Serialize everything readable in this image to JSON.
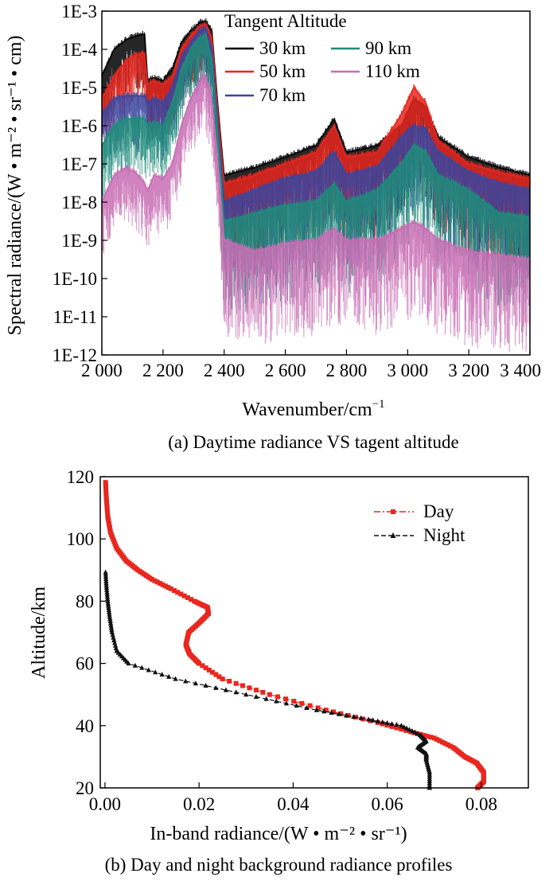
{
  "chart_data": [
    {
      "type": "line",
      "caption": "(a) Daytime radiance VS tagent altitude",
      "xlabel": "Wavenumber/cm",
      "xlabel_sup": "−1",
      "ylabel": "Spectral radiance/(W • m⁻² • sr⁻¹ • cm)",
      "x_ticks": [
        "2 000",
        "2 200",
        "2 400",
        "2 600",
        "2 800",
        "3 000",
        "3 200",
        "3 400"
      ],
      "y_ticks": [
        "1E-12",
        "1E-11",
        "1E-10",
        "1E-9",
        "1E-8",
        "1E-7",
        "1E-6",
        "1E-5",
        "1E-4",
        "1E-3"
      ],
      "xlim": [
        2000,
        3400
      ],
      "ylim": [
        1e-12,
        0.001
      ],
      "yscale": "log",
      "legend_title": "Tangent Altitude",
      "legend_position": "top",
      "series": [
        {
          "name": "30 km",
          "color": "#000000",
          "x": [
            2000,
            2040,
            2080,
            2110,
            2140,
            2150,
            2170,
            2200,
            2230,
            2260,
            2290,
            2320,
            2340,
            2360,
            2380,
            2400,
            2500,
            2600,
            2700,
            2760,
            2800,
            2900,
            2980,
            3020,
            3060,
            3100,
            3200,
            3300,
            3400
          ],
          "y": [
            2e-05,
            0.0001,
            0.00018,
            0.00022,
            0.00025,
            1.5e-05,
            1.8e-05,
            1.5e-05,
            3e-05,
            0.00015,
            0.0003,
            0.0005,
            0.00055,
            0.0003,
            3e-06,
            5e-08,
            8e-08,
            1.5e-07,
            3e-07,
            1.5e-06,
            2e-07,
            3e-07,
            1e-06,
            5e-06,
            3e-06,
            5e-07,
            1.5e-07,
            8e-08,
            5e-08
          ]
        },
        {
          "name": "50 km",
          "color": "#e8271f",
          "x": [
            2000,
            2040,
            2080,
            2110,
            2140,
            2150,
            2170,
            2200,
            2230,
            2260,
            2290,
            2320,
            2340,
            2360,
            2380,
            2400,
            2500,
            2600,
            2700,
            2760,
            2800,
            2900,
            2980,
            3020,
            3060,
            3100,
            3200,
            3300,
            3400
          ],
          "y": [
            5e-06,
            2e-05,
            5e-05,
            7e-05,
            8e-05,
            1.2e-05,
            1.5e-05,
            1.2e-05,
            2e-05,
            0.0001,
            0.00022,
            0.0004,
            0.00045,
            0.0002,
            2e-06,
            3e-08,
            5e-08,
            1e-07,
            2e-07,
            1e-06,
            1.5e-07,
            2e-07,
            2e-06,
            1e-05,
            4e-06,
            4e-07,
            1e-07,
            6e-08,
            4e-08
          ]
        },
        {
          "name": "70 km",
          "color": "#3a45a0",
          "x": [
            2000,
            2040,
            2080,
            2110,
            2140,
            2150,
            2170,
            2200,
            2230,
            2260,
            2290,
            2320,
            2340,
            2360,
            2380,
            2400,
            2500,
            2600,
            2700,
            2760,
            2800,
            2900,
            2980,
            3020,
            3060,
            3100,
            3200,
            3300,
            3400
          ],
          "y": [
            2e-06,
            5e-06,
            6e-06,
            6e-06,
            6e-06,
            4e-06,
            5e-06,
            4e-06,
            1e-05,
            6e-05,
            0.00015,
            0.0003,
            0.00035,
            0.0001,
            1e-06,
            1e-08,
            2e-08,
            4e-08,
            6e-08,
            2e-07,
            5e-08,
            8e-08,
            5e-07,
            1e-06,
            8e-07,
            2e-07,
            6e-08,
            3e-08,
            2e-08
          ]
        },
        {
          "name": "90 km",
          "color": "#1e8c7a",
          "x": [
            2000,
            2040,
            2080,
            2110,
            2140,
            2150,
            2170,
            2200,
            2230,
            2260,
            2290,
            2320,
            2340,
            2360,
            2380,
            2400,
            2500,
            2600,
            2700,
            2760,
            2800,
            2900,
            2980,
            3020,
            3060,
            3100,
            3200,
            3300,
            3400
          ],
          "y": [
            3e-07,
            1e-06,
            1.5e-06,
            1.5e-06,
            1.5e-06,
            1e-06,
            1.2e-06,
            1e-06,
            4e-06,
            3e-05,
            0.0001,
            0.0002,
            0.00025,
            5e-05,
            5e-07,
            3e-09,
            5e-09,
            8e-09,
            1e-08,
            3e-08,
            1e-08,
            2e-08,
            1e-07,
            3e-07,
            2e-07,
            5e-08,
            2e-08,
            5e-09,
            4e-09
          ]
        },
        {
          "name": "110 km",
          "color": "#c86db4",
          "x": [
            2000,
            2040,
            2080,
            2110,
            2140,
            2150,
            2170,
            2200,
            2230,
            2260,
            2290,
            2320,
            2340,
            2360,
            2380,
            2400,
            2500,
            2600,
            2700,
            2760,
            2800,
            2900,
            2980,
            3020,
            3060,
            3100,
            3200,
            3300,
            3400
          ],
          "y": [
            1e-08,
            5e-08,
            8e-08,
            6e-08,
            3e-08,
            2e-08,
            5e-08,
            4e-08,
            1e-07,
            1e-06,
            5e-06,
            1.5e-05,
            2e-05,
            5e-06,
            1e-07,
            1e-09,
            5e-10,
            8e-10,
            1e-09,
            2e-09,
            1e-09,
            1e-09,
            2e-09,
            3e-09,
            2e-09,
            1e-09,
            5e-10,
            4e-10,
            3e-10
          ]
        }
      ]
    },
    {
      "type": "line",
      "caption": "(b) Day and night background radiance profiles",
      "xlabel": "In-band radiance/(W • m⁻² • sr⁻¹)",
      "ylabel": "Altitude/km",
      "x_ticks": [
        "0.00",
        "0.02",
        "0.04",
        "0.06",
        "0.08"
      ],
      "y_ticks": [
        "20",
        "40",
        "60",
        "80",
        "100",
        "120"
      ],
      "xlim": [
        -0.001,
        0.09
      ],
      "ylim": [
        20,
        120
      ],
      "legend_position": "top-right",
      "series": [
        {
          "name": "Day",
          "color": "#e8271f",
          "marker": "square",
          "linestyle": "dash-dot",
          "x": [
            0.0792,
            0.0805,
            0.0805,
            0.079,
            0.0765,
            0.074,
            0.07,
            0.065,
            0.058,
            0.047,
            0.035,
            0.025,
            0.02,
            0.018,
            0.0172,
            0.0178,
            0.02,
            0.022,
            0.0218,
            0.019,
            0.014,
            0.01,
            0.007,
            0.0045,
            0.0025,
            0.0012,
            0.0006,
            0.0003,
            0.0001
          ],
          "y": [
            20,
            22,
            25,
            28,
            30,
            33,
            36,
            38,
            41,
            45,
            50,
            55,
            60,
            63,
            66,
            70,
            73,
            76,
            78,
            80,
            84,
            87,
            90,
            93,
            97,
            102,
            107,
            113,
            119
          ]
        },
        {
          "name": "Night",
          "color": "#111111",
          "marker": "triangle",
          "linestyle": "dash",
          "x": [
            0.069,
            0.069,
            0.0683,
            0.0683,
            0.0665,
            0.0683,
            0.067,
            0.063,
            0.056,
            0.045,
            0.03,
            0.015,
            0.005,
            0.0025,
            0.0015,
            0.001,
            0.0006,
            0.0003,
            0.0001
          ],
          "y": [
            20,
            25,
            29,
            31,
            33,
            35,
            37,
            40,
            42,
            45,
            50,
            55,
            60,
            64,
            70,
            75,
            80,
            85,
            90
          ]
        }
      ]
    }
  ]
}
